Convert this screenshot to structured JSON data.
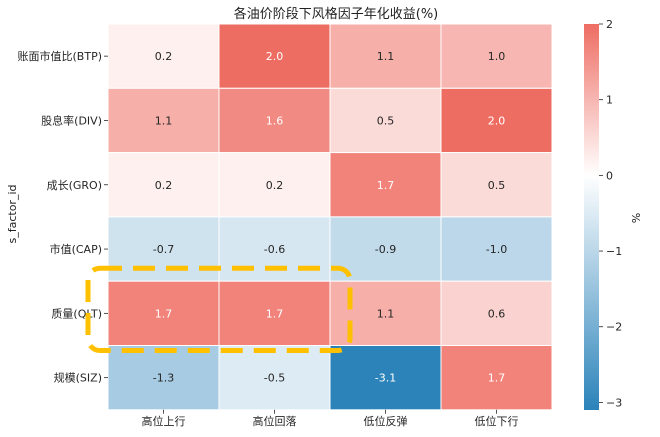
{
  "chart_data": {
    "type": "heatmap",
    "title": "各油价阶段下风格因子年化收益(%)",
    "ylabel": "s_factor_id",
    "colorbar_label": "%",
    "rows": [
      "账面市值比(BTP)",
      "股息率(DIV)",
      "成长(GRO)",
      "市值(CAP)",
      "质量(QLT)",
      "规模(SIZ)"
    ],
    "columns": [
      "高位上行",
      "高位回落",
      "低位反弹",
      "低位下行"
    ],
    "values": [
      [
        0.2,
        2.0,
        1.1,
        1.0
      ],
      [
        1.1,
        1.6,
        0.5,
        2.0
      ],
      [
        0.2,
        0.2,
        1.7,
        0.5
      ],
      [
        -0.7,
        -0.6,
        -0.9,
        -1.0
      ],
      [
        1.7,
        1.7,
        1.1,
        0.6
      ],
      [
        -1.3,
        -0.5,
        -3.1,
        1.7
      ]
    ],
    "labels": [
      [
        "0.2",
        "2.0",
        "1.1",
        "1.0"
      ],
      [
        "1.1",
        "1.6",
        "0.5",
        "2.0"
      ],
      [
        "0.2",
        "0.2",
        "1.7",
        "0.5"
      ],
      [
        "-0.7",
        "-0.6",
        "-0.9",
        "-1.0"
      ],
      [
        "1.7",
        "1.7",
        "1.1",
        "0.6"
      ],
      [
        "-1.3",
        "-0.5",
        "-3.1",
        "1.7"
      ]
    ],
    "colorbar": {
      "min": -3.1,
      "max": 2.0,
      "ticks": [
        2,
        1,
        0,
        -1,
        -2,
        -3
      ],
      "tick_labels": [
        "2",
        "1",
        "0",
        "−1",
        "−2",
        "−3"
      ]
    },
    "colors": {
      "negative": "#2b83ba",
      "zero": "#ffffff",
      "positive": "#ee6d63",
      "highlight": "#ffc000"
    },
    "highlighted_row": "质量(QLT)"
  }
}
